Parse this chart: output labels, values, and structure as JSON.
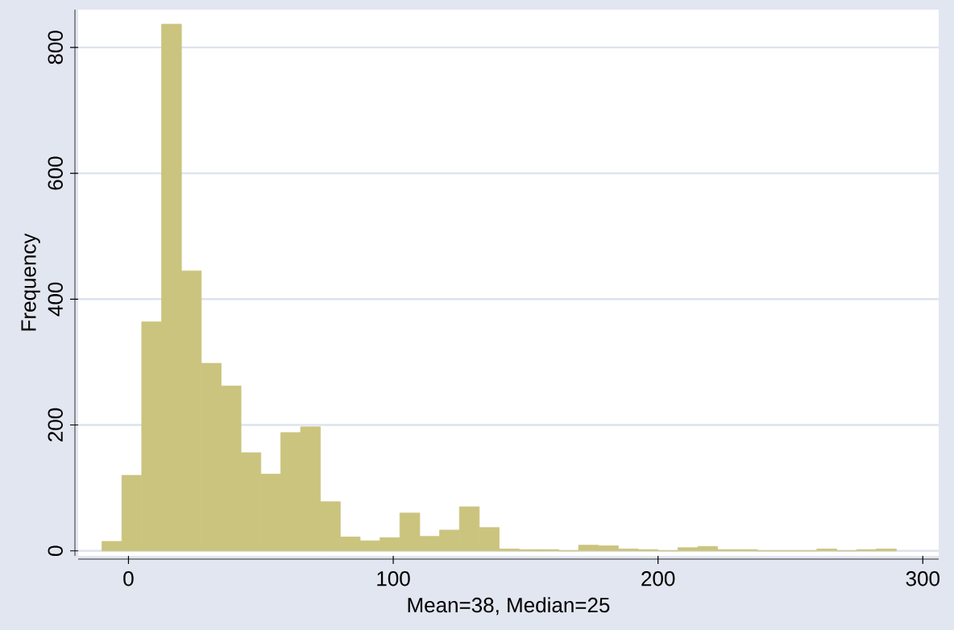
{
  "chart_data": {
    "type": "histogram",
    "xlabel": "Mean=38, Median=25",
    "ylabel": "Frequency",
    "bins": [
      -10,
      -2.5,
      5,
      12.5,
      20,
      27.5,
      35,
      42.5,
      50,
      57.5,
      65,
      72.5,
      80,
      87.5,
      95,
      102.5,
      110,
      117.5,
      125,
      132.5,
      140,
      147.5,
      155,
      162.5,
      170,
      177.5,
      185,
      192.5,
      200,
      207.5,
      215,
      222.5,
      230,
      237.5,
      245,
      252.5,
      260,
      267.5,
      275,
      282.5,
      290
    ],
    "values": [
      15,
      120,
      364,
      837,
      445,
      298,
      262,
      156,
      122,
      188,
      197,
      78,
      22,
      16,
      21,
      60,
      23,
      33,
      70,
      37,
      3,
      2,
      2,
      0,
      9,
      8,
      3,
      2,
      0,
      5,
      7,
      2,
      2,
      0,
      0,
      0,
      3,
      0,
      2,
      3
    ],
    "color": "#cbc47f",
    "xlim": [
      -19,
      306
    ],
    "ylim": [
      -8,
      860
    ],
    "xticks": [
      0,
      100,
      200,
      300
    ],
    "yticks": [
      0,
      200,
      400,
      600,
      800
    ],
    "grid": "y"
  }
}
